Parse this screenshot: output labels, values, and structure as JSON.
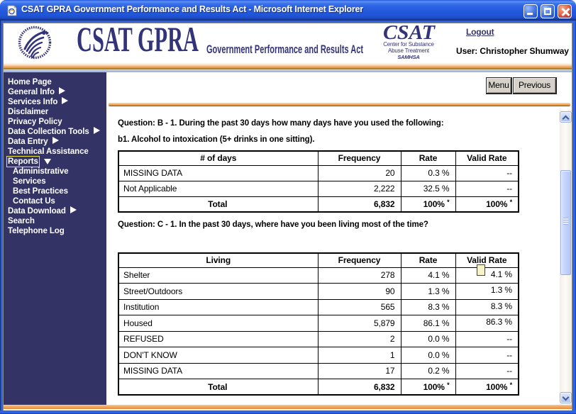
{
  "window": {
    "title": "CSAT GPRA Government Performance and Results Act - Microsoft Internet Explorer"
  },
  "header": {
    "logo_text": "CSAT GPRA",
    "tagline": "Government Performance and Results Act",
    "seal": {
      "title": "CSAT",
      "line1": "Center for Substance",
      "line2": "Abuse Treatment",
      "line3": "SAMHSA"
    },
    "logout_label": "Logout",
    "user_label": "User: Christopher Shumway"
  },
  "sidebar": {
    "items": [
      {
        "label": "Home Page"
      },
      {
        "label": "General Info",
        "arrow": "right"
      },
      {
        "label": "Services Info",
        "arrow": "right"
      },
      {
        "label": "Disclaimer"
      },
      {
        "label": "Privacy Policy"
      },
      {
        "label": "Data Collection Tools",
        "arrow": "right"
      },
      {
        "label": "Data Entry",
        "arrow": "right"
      },
      {
        "label": "Technical Assistance"
      },
      {
        "label": "Reports",
        "arrow": "down",
        "selected": true
      },
      {
        "label": "Administrative",
        "indent": true
      },
      {
        "label": "Services",
        "indent": true
      },
      {
        "label": "Best Practices",
        "indent": true
      },
      {
        "label": "Contact Us",
        "indent": true
      },
      {
        "label": "Data Download",
        "arrow": "right"
      },
      {
        "label": "Search"
      },
      {
        "label": "Telephone Log"
      }
    ]
  },
  "toolbar": {
    "menu_label": "Menu",
    "previous_label": "Previous"
  },
  "main": {
    "question_b_line1": "Question: B - 1. During the past 30 days how many days have you used the following:",
    "question_b_line2": "b1. Alcohol to intoxication (5+ drinks in one sitting).",
    "table_b": {
      "headers": [
        "# of days",
        "Frequency",
        "Rate",
        "Valid Rate"
      ],
      "rows": [
        [
          "MISSING DATA",
          "20",
          "0.3 %",
          "--"
        ],
        [
          "Not Applicable",
          "2,222",
          "32.5 %",
          "--"
        ]
      ],
      "total": {
        "label": "Total",
        "frequency": "6,832",
        "rate": "100%",
        "rate_mark": "*",
        "valid_rate": "100%",
        "valid_rate_mark": "*"
      }
    },
    "question_c_line1": "Question: C - 1. In the past 30 days, where have you been living most of the time?",
    "table_c": {
      "headers": [
        "Living",
        "Frequency",
        "Rate",
        "Valid Rate"
      ],
      "rows": [
        [
          "Shelter",
          "278",
          "4.1 %",
          "4.1 %"
        ],
        [
          "Street/Outdoors",
          "90",
          "1.3 %",
          "1.3 %"
        ],
        [
          "Institution",
          "565",
          "8.3 %",
          "8.3 %"
        ],
        [
          "Housed",
          "5,879",
          "86.1 %",
          "86.3 %"
        ],
        [
          "REFUSED",
          "2",
          "0.0 %",
          "--"
        ],
        [
          "DON'T KNOW",
          "1",
          "0.0 %",
          "--"
        ],
        [
          "MISSING DATA",
          "17",
          "0.2 %",
          "--"
        ]
      ],
      "total": {
        "label": "Total",
        "frequency": "6,832",
        "rate": "100%",
        "rate_mark": "*",
        "valid_rate": "100%",
        "valid_rate_mark": "*"
      }
    }
  },
  "colors": {
    "sidebar_navy": "#333366",
    "logo_navy": "#333379",
    "titlebar_blue": "#2e63e6",
    "band_orange": "#ee9f5d",
    "selected_outline_yellow": "#e8e332"
  }
}
